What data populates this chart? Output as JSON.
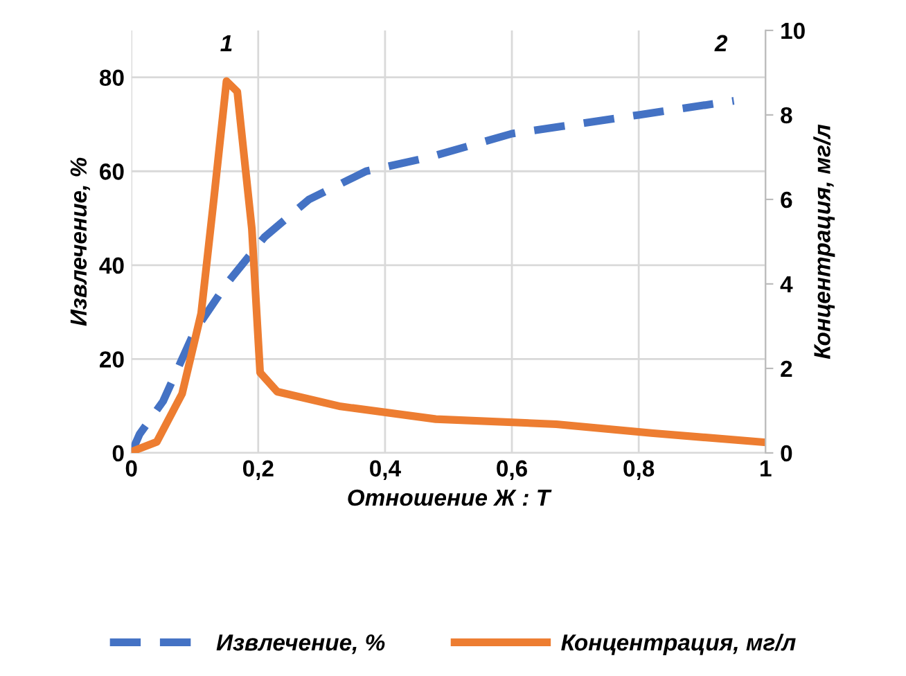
{
  "chart_data": {
    "type": "line",
    "xlabel": "Отношение Ж : Т",
    "ylabel": "Извлечение, %",
    "y2label": "Концентрация, мг/л",
    "xlim": [
      0,
      1
    ],
    "xticks": [
      0,
      {
        "value": 0.2,
        "label": "0,2"
      },
      {
        "value": 0.4,
        "label": "0,4"
      },
      {
        "value": 0.6,
        "label": "0,6"
      },
      {
        "value": 0.8,
        "label": "0,8"
      },
      1
    ],
    "ylim": [
      0,
      90
    ],
    "yticks": [
      0,
      20,
      40,
      60,
      80
    ],
    "y2lim": [
      0,
      10
    ],
    "y2ticks": [
      0,
      2,
      4,
      6,
      8,
      10
    ],
    "grid": true,
    "legend": "bottom",
    "series": [
      {
        "name": "Извлечение, %",
        "color": "#4472c4",
        "line_style": "dashed",
        "x": [
          0,
          0.013,
          0.05,
          0.1,
          0.15,
          0.21,
          0.28,
          0.37,
          0.47,
          0.6,
          0.8,
          0.95
        ],
        "values": [
          0,
          4,
          11,
          26,
          36,
          46,
          54,
          60,
          63,
          68,
          72,
          75
        ]
      },
      {
        "name": "Концентрация, мг/л",
        "color": "#ed7d31",
        "line_style": "solid",
        "axis": "y2",
        "x": [
          0,
          0.04,
          0.08,
          0.11,
          0.13,
          0.15,
          0.167,
          0.19,
          0.203,
          0.23,
          0.33,
          0.48,
          0.67,
          0.82,
          1.0
        ],
        "values": [
          0.03,
          0.26,
          1.4,
          3.3,
          6.0,
          8.8,
          8.55,
          5.3,
          1.9,
          1.45,
          1.1,
          0.8,
          0.68,
          0.47,
          0.25
        ]
      }
    ],
    "annotations": [
      "1",
      "2"
    ]
  }
}
